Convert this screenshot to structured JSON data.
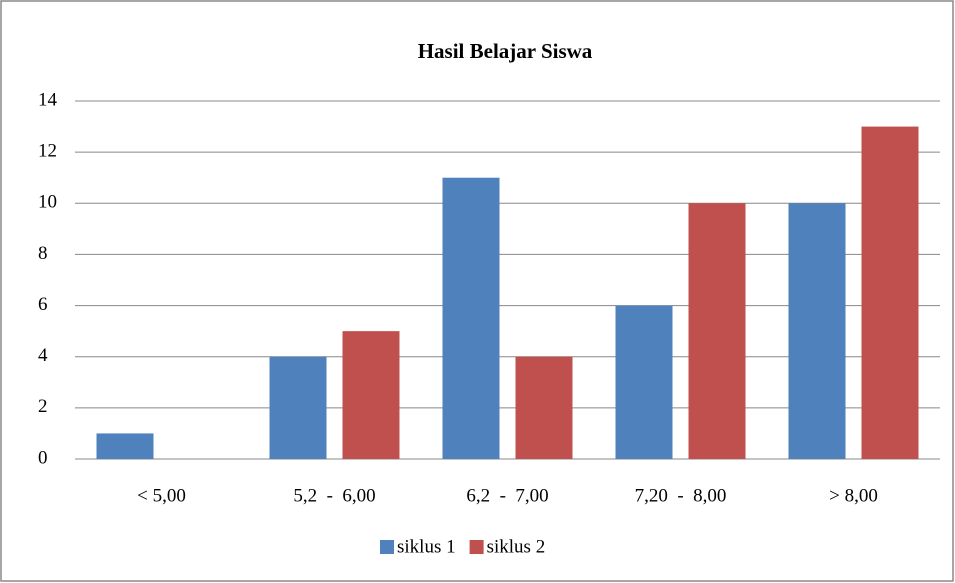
{
  "chart_data": {
    "type": "bar",
    "title": "Hasil Belajar Siswa",
    "categories": [
      "< 5,00",
      "5,2  -  6,00",
      "6,2  -  7,00",
      "7,20  -  8,00",
      "> 8,00"
    ],
    "series": [
      {
        "name": "siklus 1",
        "color": "#4f81bd",
        "values": [
          1,
          4,
          11,
          6,
          10
        ]
      },
      {
        "name": "siklus 2",
        "color": "#c0504d",
        "values": [
          0,
          5,
          4,
          10,
          13
        ]
      }
    ],
    "ylim": [
      0,
      14
    ],
    "yticks": [
      0,
      2,
      4,
      6,
      8,
      10,
      12,
      14
    ],
    "grid": true,
    "legend": "bottom"
  }
}
